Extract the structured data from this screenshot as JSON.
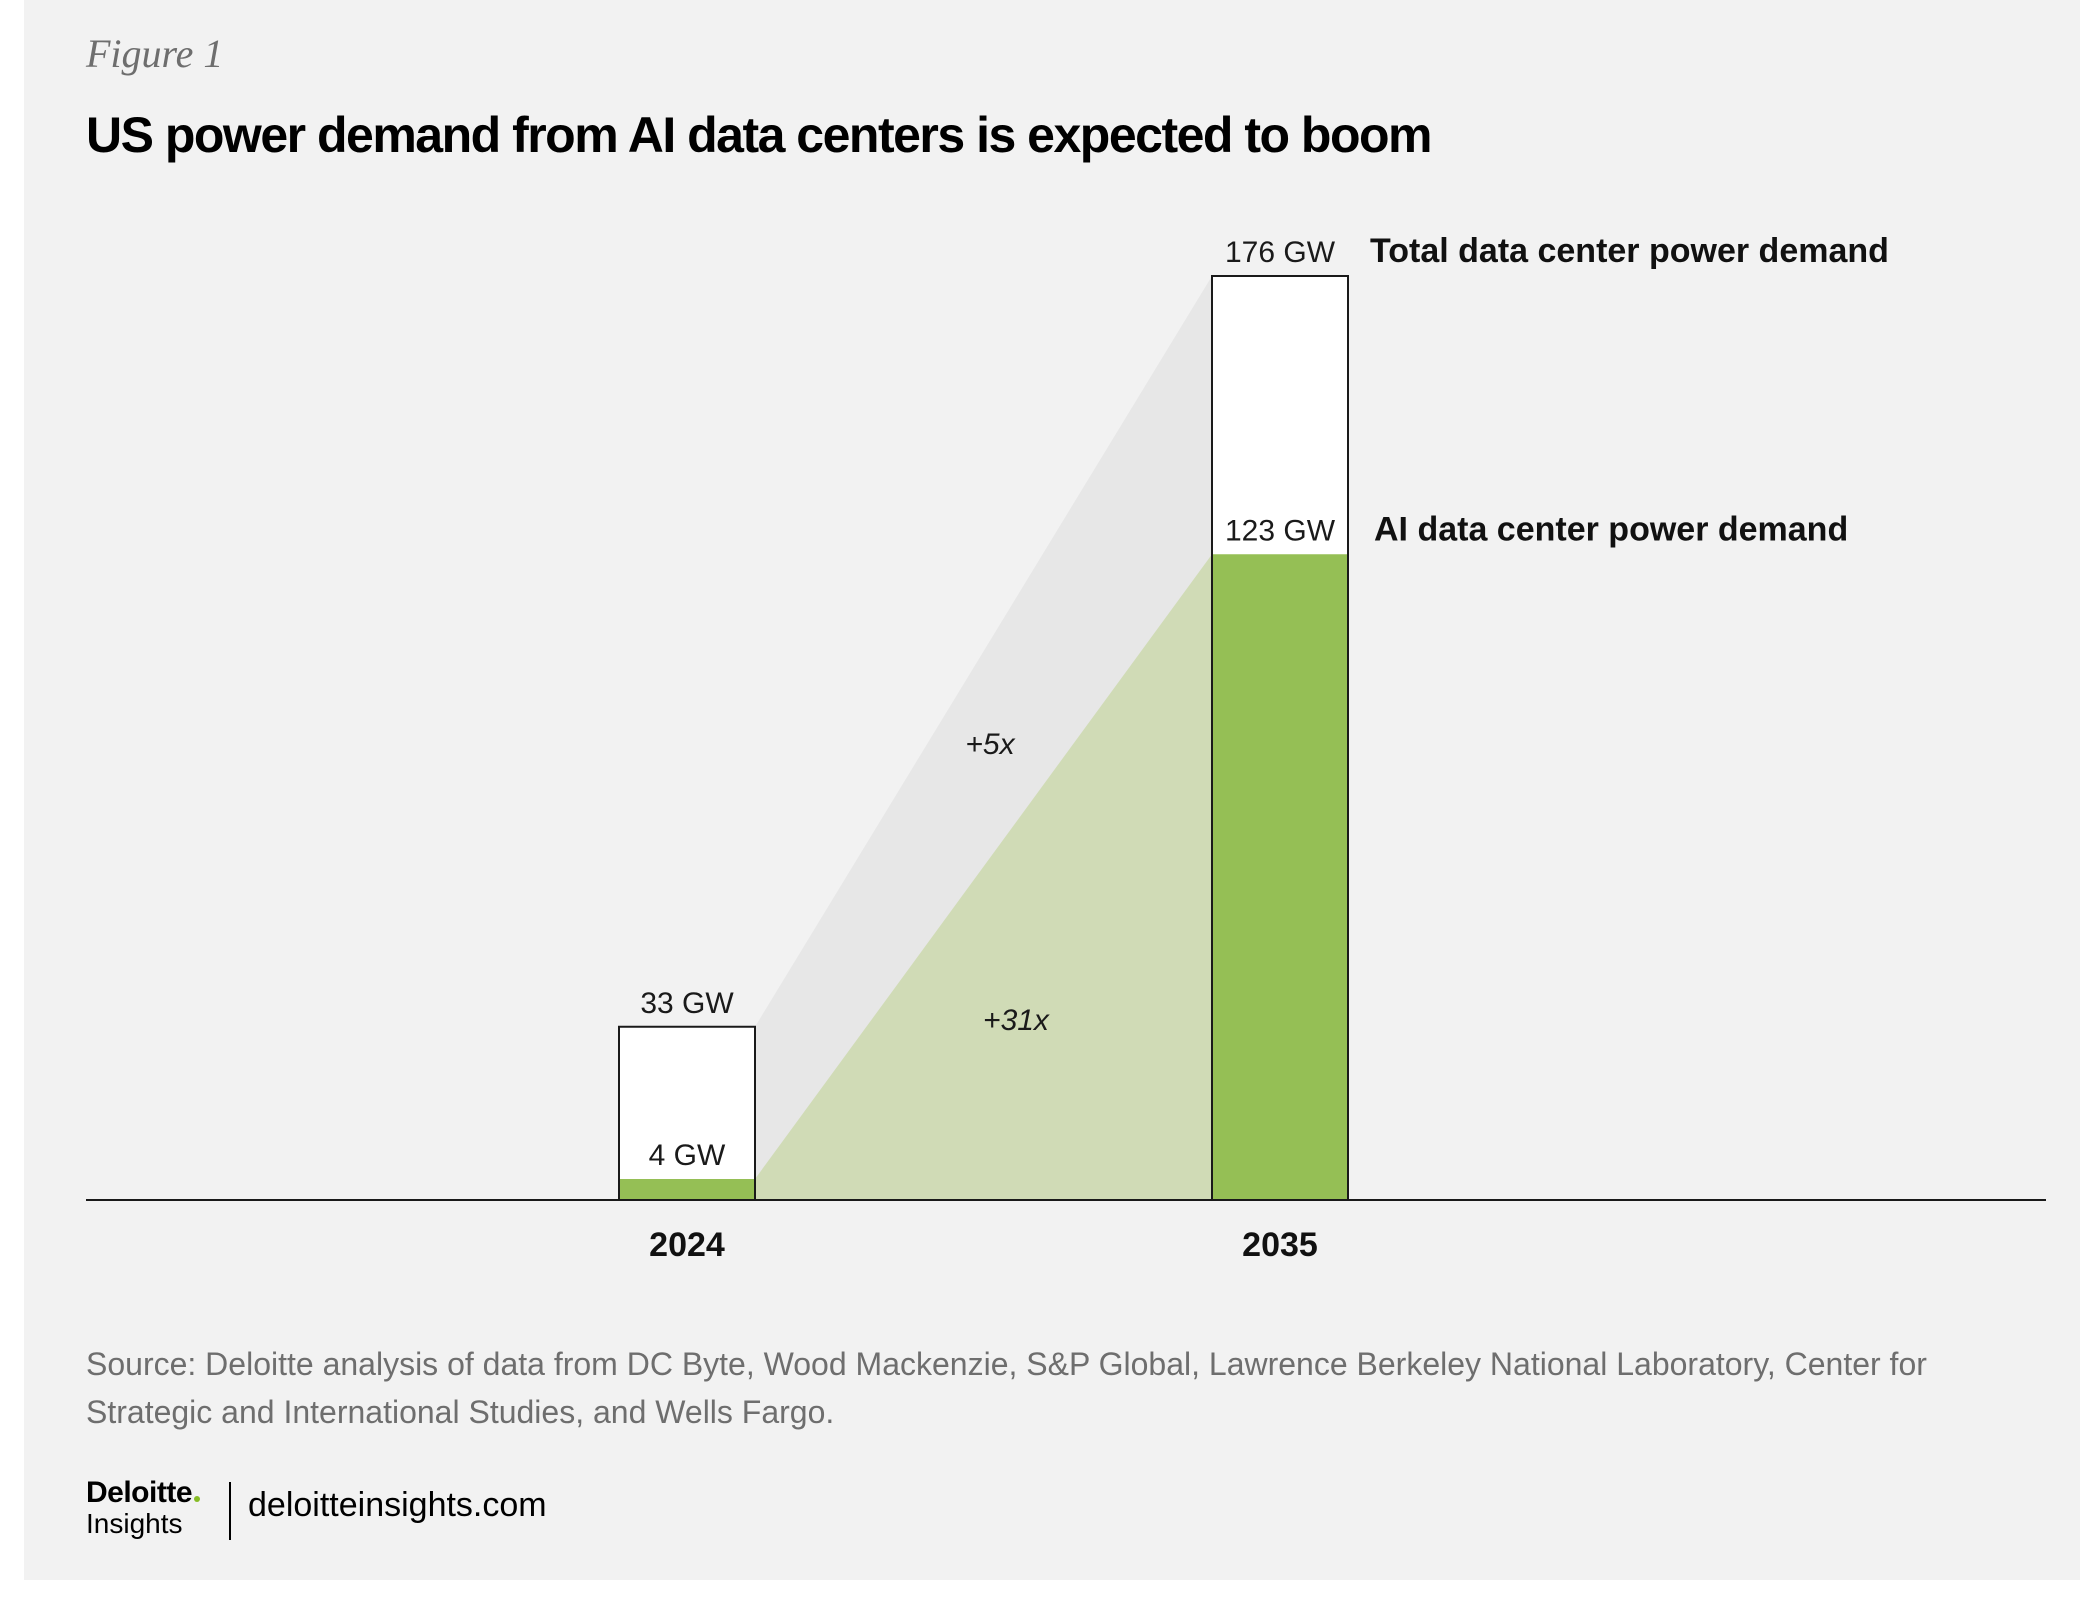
{
  "figure_label": "Figure 1",
  "title": "US power demand from AI data centers is expected to boom",
  "chart_data": {
    "type": "bar",
    "categories": [
      "2024",
      "2035"
    ],
    "series": [
      {
        "name": "Total data center power demand",
        "values": [
          33,
          176
        ],
        "value_labels": [
          "33 GW",
          "176 GW"
        ]
      },
      {
        "name": "AI data center power demand",
        "values": [
          4,
          123
        ],
        "value_labels": [
          "4 GW",
          "123 GW"
        ]
      }
    ],
    "growth_annotations": {
      "total": "+5x",
      "ai": "+31x"
    },
    "unit": "GW",
    "ylim": [
      0,
      176
    ],
    "grid": false,
    "legend": "right",
    "colors": {
      "total": "#ffffff",
      "ai": "#95bf55",
      "total_band": "#e7e7e7",
      "ai_band": "#d0dbb6",
      "outline": "#1a1a1a"
    }
  },
  "source": "Source: Deloitte analysis of data from DC Byte, Wood Mackenzie, S&P Global, Lawrence Berkeley National Laboratory, Center for Strategic and International Studies, and Wells Fargo.",
  "brand": {
    "name": "Deloitte",
    "sub": "Insights",
    "url": "deloitteinsights.com"
  }
}
